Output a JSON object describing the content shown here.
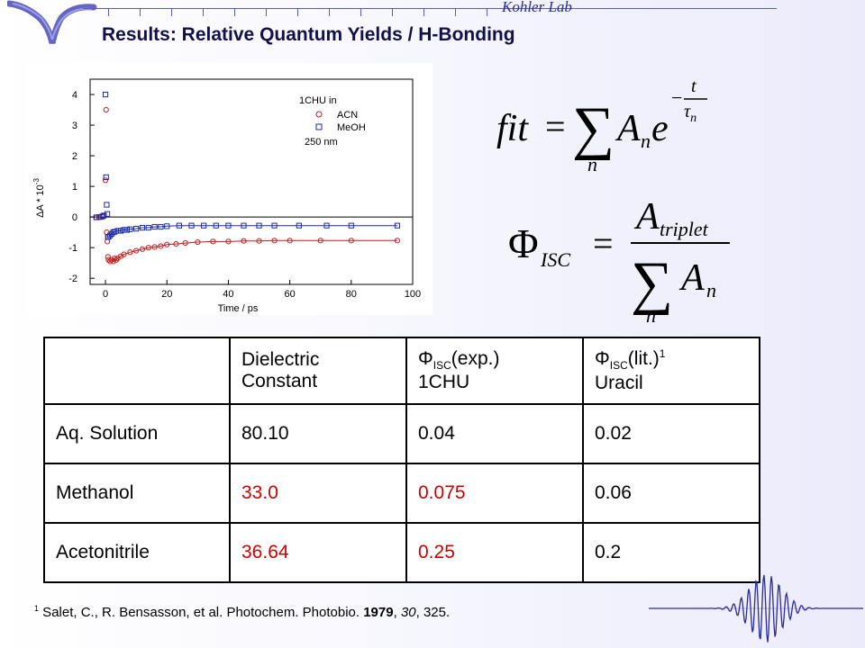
{
  "header": {
    "lab": "Kohler Lab",
    "title": "Results: Relative Quantum Yields / H-Bonding"
  },
  "chart_data": {
    "type": "scatter",
    "title": "",
    "xlabel": "Time / ps",
    "ylabel": "ΔA * 10",
    "ylabel_exp": "-3",
    "xlim": [
      -5,
      100
    ],
    "ylim": [
      -2.2,
      4.5
    ],
    "xticks": [
      "0",
      "20",
      "40",
      "60",
      "80",
      "100"
    ],
    "yticks": [
      "-2",
      "-1",
      "0",
      "1",
      "2",
      "3",
      "4"
    ],
    "legend_title": "1CHU in",
    "legend_note": "250 nm",
    "legend_position": "top-right",
    "series": [
      {
        "name": "ACN",
        "marker": "circle",
        "color": "#cc1a1a",
        "x": [
          -3,
          -2,
          -1,
          -0.5,
          0,
          0.2,
          0.4,
          0.6,
          0.8,
          1,
          1.5,
          2,
          2.5,
          3,
          3.5,
          4,
          5,
          6,
          8,
          10,
          12,
          14,
          16,
          18,
          20,
          23,
          26,
          30,
          35,
          40,
          45,
          50,
          55,
          60,
          70,
          80,
          95
        ],
        "y": [
          -0.01,
          -0.01,
          0.0,
          0.05,
          1.2,
          3.5,
          -0.5,
          -0.8,
          -1.3,
          -1.4,
          -1.45,
          -1.4,
          -1.45,
          -1.35,
          -1.4,
          -1.35,
          -1.28,
          -1.22,
          -1.15,
          -1.1,
          -1.05,
          -1.0,
          -0.98,
          -0.95,
          -0.9,
          -0.88,
          -0.85,
          -0.82,
          -0.8,
          -0.8,
          -0.78,
          -0.78,
          -0.77,
          -0.77,
          -0.77,
          -0.77,
          -0.77
        ]
      },
      {
        "name": "MeOH",
        "marker": "square",
        "color": "#1a2aa8",
        "x": [
          -3,
          -2,
          -1,
          -0.5,
          0,
          0.2,
          0.4,
          0.6,
          0.8,
          1,
          1.5,
          2,
          2.5,
          3,
          4,
          5,
          6,
          7,
          8,
          10,
          12,
          14,
          16,
          18,
          20,
          24,
          28,
          32,
          36,
          40,
          45,
          50,
          55,
          63,
          72,
          80,
          95
        ],
        "y": [
          -0.01,
          0.0,
          0.02,
          0.05,
          4.0,
          1.3,
          0.4,
          0.1,
          -0.65,
          -0.65,
          -0.6,
          -0.55,
          -0.5,
          -0.48,
          -0.45,
          -0.45,
          -0.42,
          -0.42,
          -0.4,
          -0.38,
          -0.35,
          -0.35,
          -0.32,
          -0.32,
          -0.3,
          -0.28,
          -0.28,
          -0.28,
          -0.28,
          -0.28,
          -0.28,
          -0.28,
          -0.28,
          -0.28,
          -0.28,
          -0.28,
          -0.28
        ]
      }
    ],
    "zero_line": 0
  },
  "equations": {
    "fit_lhs": "fit",
    "eq_sign": "=",
    "sum": "∑",
    "index": "n",
    "A": "A",
    "e": "e",
    "exp_t": "t",
    "exp_tau": "τ",
    "exp_tau_sub": "n",
    "minus": "−",
    "phi": "Φ",
    "phi_sub": "ISC",
    "numerator": "A",
    "numerator_sub": "triplet"
  },
  "table": {
    "headers": [
      {
        "line1": "",
        "line2": ""
      },
      {
        "line1": "Dielectric",
        "line2": "Constant"
      },
      {
        "phi": "Φ",
        "sub": "ISC",
        "rest": "(exp.)",
        "line2": "1CHU"
      },
      {
        "phi": "Φ",
        "sub": "ISC",
        "rest": "(lit.)",
        "sup": "1",
        "line2": "Uracil"
      }
    ],
    "rows": [
      {
        "solvent": "Aq. Solution",
        "dielectric": "80.10",
        "exp": "0.04",
        "lit": "0.02"
      },
      {
        "solvent": "Methanol",
        "dielectric": "33.0",
        "exp": "0.075",
        "lit": "0.06"
      },
      {
        "solvent": "Acetonitrile",
        "dielectric": "36.64",
        "exp": "0.25",
        "lit": "0.2"
      }
    ],
    "highlight_color": "#d00000"
  },
  "reference": {
    "marker": "1",
    "text_a": " Salet, C., R. Bensasson, et al. Photochem. Photobio. ",
    "year": "1979",
    "sep1": ", ",
    "volume": "30",
    "sep2": ", 325."
  }
}
